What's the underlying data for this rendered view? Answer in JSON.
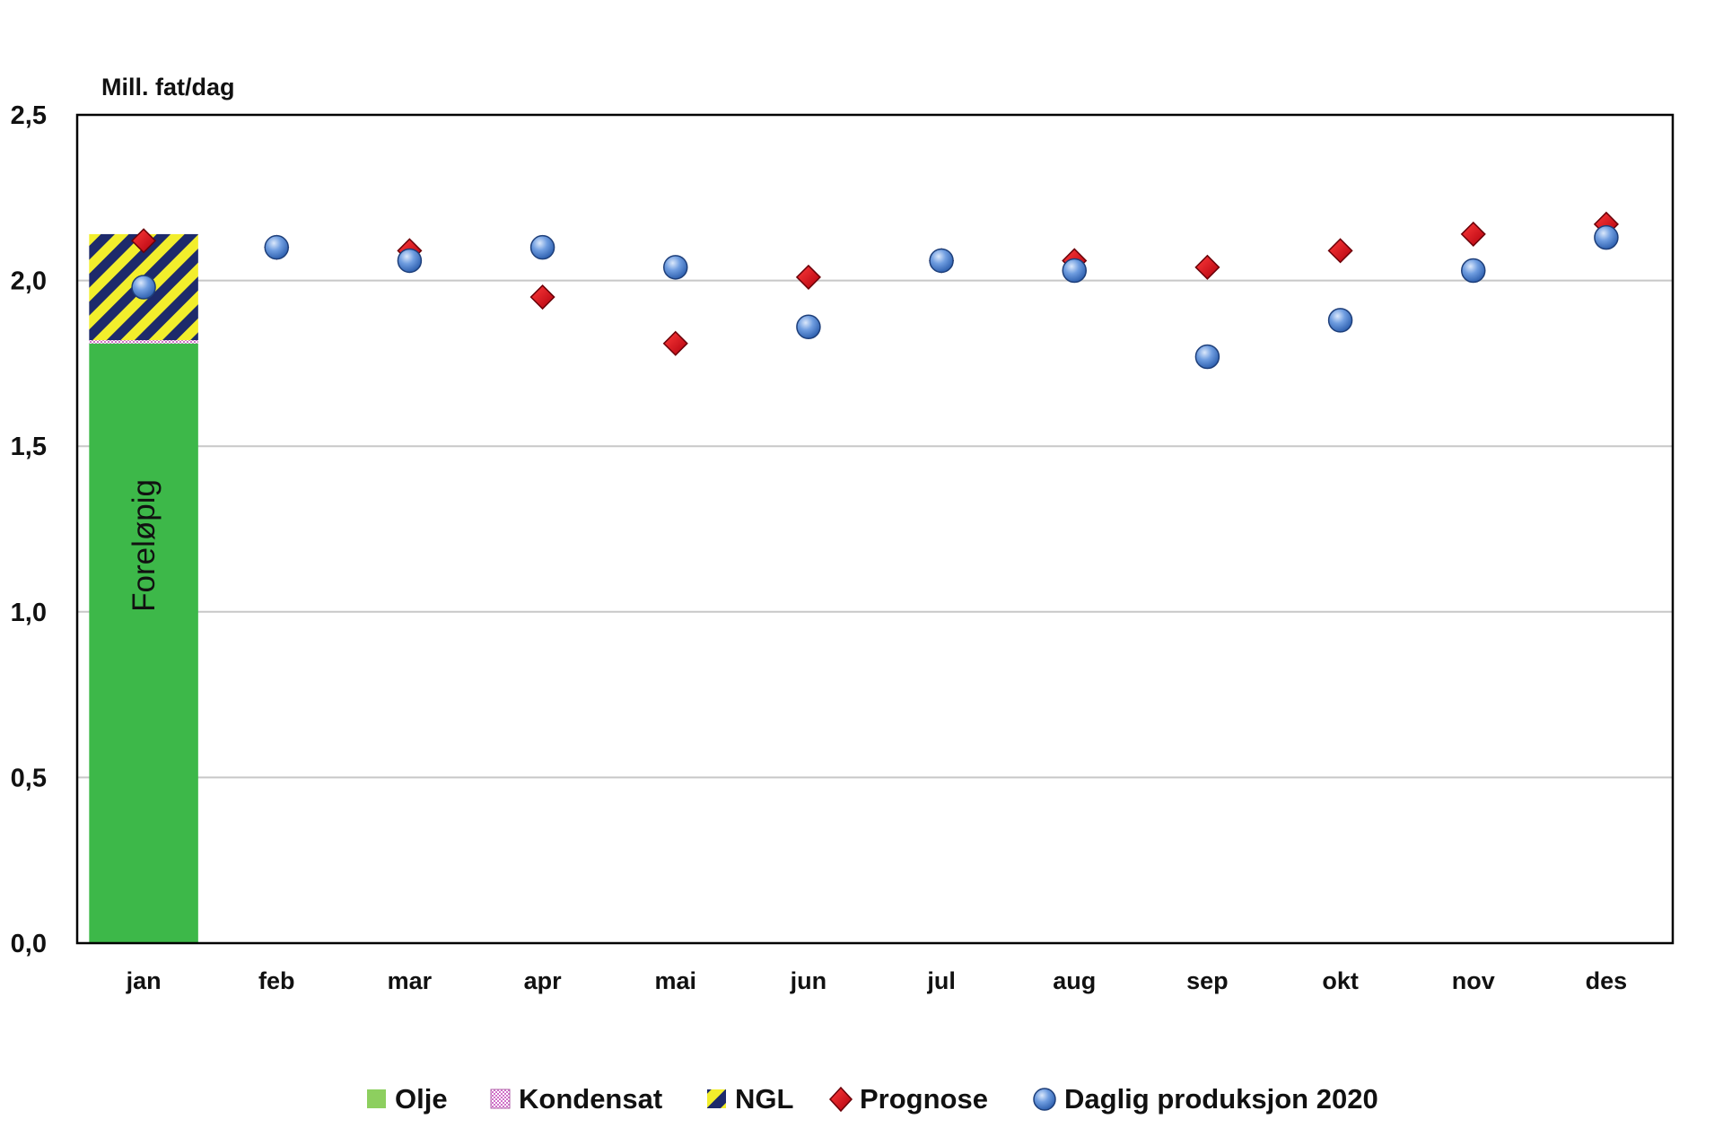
{
  "chart_data": {
    "type": "bar",
    "ylabel": "Mill. fat/dag",
    "ylim": [
      0,
      2.5
    ],
    "yticks": [
      0,
      0.5,
      1,
      1.5,
      2,
      2.5
    ],
    "ytick_labels": [
      "0,0",
      "0,5",
      "1,0",
      "1,5",
      "2,0",
      "2,5"
    ],
    "categories": [
      "jan",
      "feb",
      "mar",
      "apr",
      "mai",
      "jun",
      "jul",
      "aug",
      "sep",
      "okt",
      "nov",
      "des"
    ],
    "grid": true,
    "legend_position": "bottom",
    "bar_annotation": "Foreløpig",
    "stacked_series": [
      {
        "name": "Olje",
        "color": "#3db849",
        "legend_color": "#8dcf5f",
        "values": [
          1.81,
          null,
          null,
          null,
          null,
          null,
          null,
          null,
          null,
          null,
          null,
          null
        ]
      },
      {
        "name": "Kondensat",
        "color": "#d070c8",
        "values": [
          0.01,
          null,
          null,
          null,
          null,
          null,
          null,
          null,
          null,
          null,
          null,
          null
        ]
      },
      {
        "name": "NGL",
        "color": "#f2ee2c",
        "values": [
          0.32,
          null,
          null,
          null,
          null,
          null,
          null,
          null,
          null,
          null,
          null,
          null
        ]
      }
    ],
    "marker_series": [
      {
        "name": "Prognose",
        "marker": "diamond",
        "color": "#e0121e",
        "values": [
          2.12,
          2.1,
          2.09,
          1.95,
          1.81,
          2.01,
          2.06,
          2.06,
          2.04,
          2.09,
          2.14,
          2.17
        ]
      },
      {
        "name": "Daglig produksjon 2020",
        "marker": "circle",
        "color": "#5b8fd6",
        "values": [
          1.98,
          2.1,
          2.06,
          2.1,
          2.04,
          1.86,
          2.06,
          2.03,
          1.77,
          1.88,
          2.03,
          2.13
        ]
      }
    ]
  }
}
